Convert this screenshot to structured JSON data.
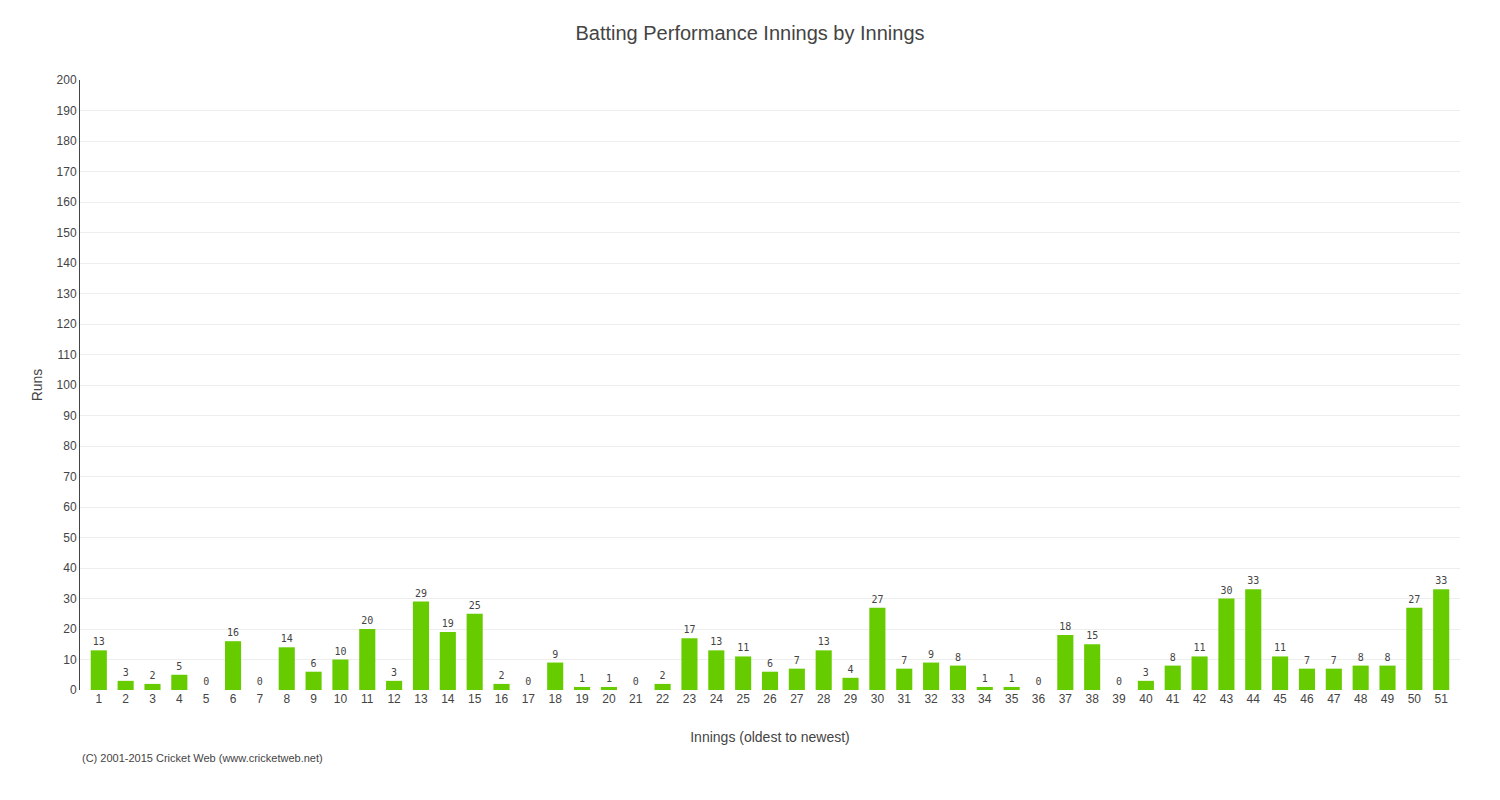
{
  "chart_data": {
    "type": "bar",
    "title": "Batting Performance Innings by Innings",
    "x_label": "Innings (oldest to newest)",
    "y_label": "Runs",
    "categories": [
      "1",
      "2",
      "3",
      "4",
      "5",
      "6",
      "7",
      "8",
      "9",
      "10",
      "11",
      "12",
      "13",
      "14",
      "15",
      "16",
      "17",
      "18",
      "19",
      "20",
      "21",
      "22",
      "23",
      "24",
      "25",
      "26",
      "27",
      "28",
      "29",
      "30",
      "31",
      "32",
      "33",
      "34",
      "35",
      "36",
      "37",
      "38",
      "39",
      "40",
      "41",
      "42",
      "43",
      "44",
      "45",
      "46",
      "47",
      "48",
      "49",
      "50",
      "51"
    ],
    "values": [
      13,
      3,
      2,
      5,
      0,
      16,
      0,
      14,
      6,
      10,
      20,
      3,
      29,
      19,
      25,
      2,
      0,
      9,
      1,
      1,
      0,
      2,
      17,
      13,
      11,
      6,
      7,
      13,
      4,
      27,
      7,
      9,
      8,
      1,
      1,
      0,
      18,
      15,
      0,
      3,
      8,
      11,
      30,
      33,
      11,
      7,
      7,
      8,
      8,
      27,
      33
    ],
    "color": "#66cc00",
    "ylim": [
      0,
      200
    ],
    "yticks": [
      0,
      10,
      20,
      30,
      40,
      50,
      60,
      70,
      80,
      90,
      100,
      110,
      120,
      130,
      140,
      150,
      160,
      170,
      180,
      190,
      200
    ],
    "grid": true,
    "data_labels": true,
    "annotations": [
      "(C) 2001-2015 Cricket Web (www.cricketweb.net)"
    ]
  }
}
